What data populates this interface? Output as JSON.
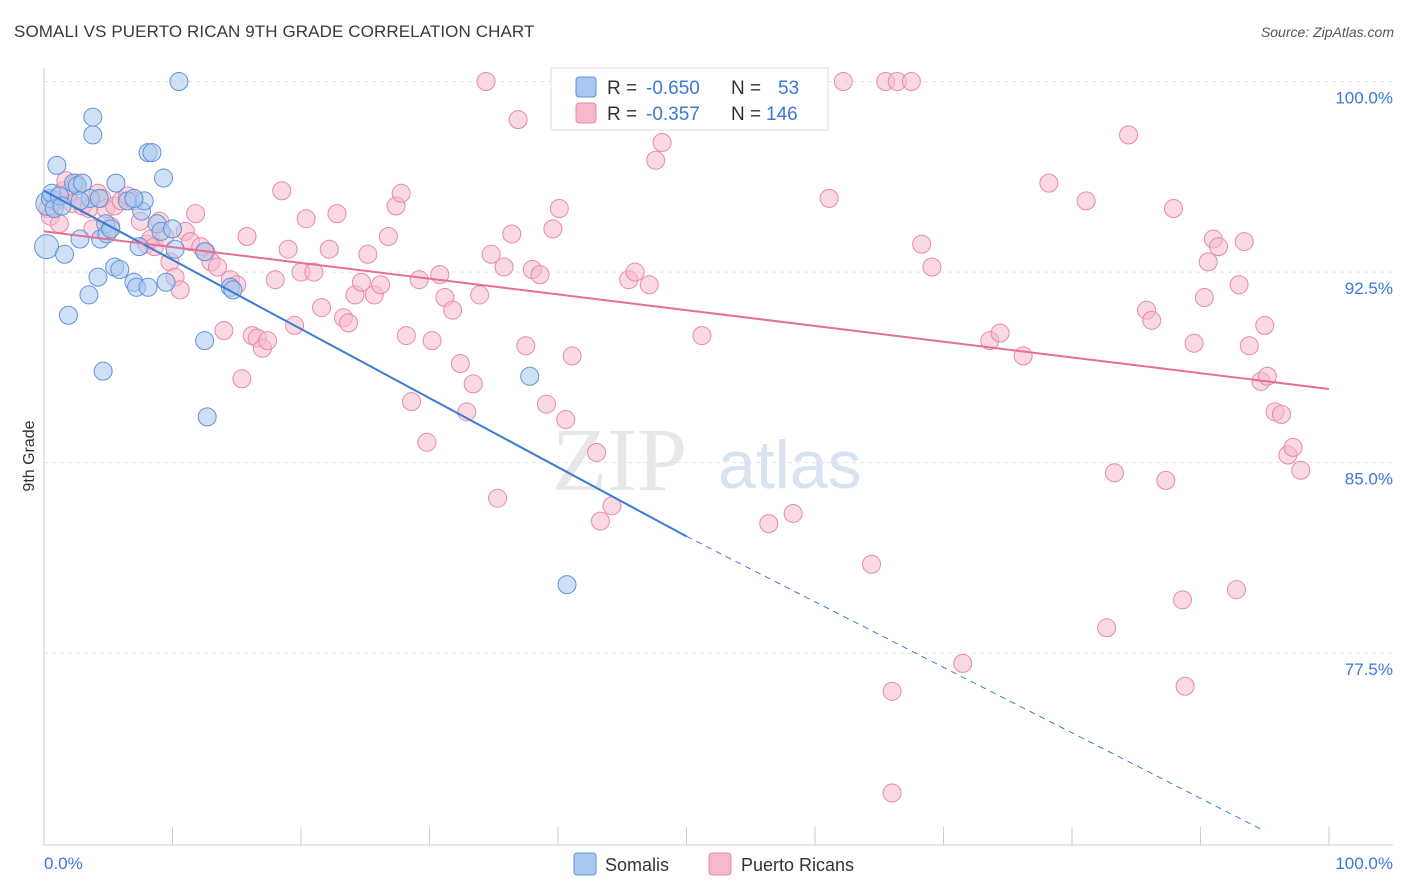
{
  "header": {
    "title": "SOMALI VS PUERTO RICAN 9TH GRADE CORRELATION CHART",
    "source": "Source: ZipAtlas.com"
  },
  "watermark": {
    "zip": "ZIP",
    "atlas": "atlas"
  },
  "colors": {
    "somali_fill": "#a9c8f0",
    "somali_stroke": "#5f93d6",
    "somali_line": "#3a7bd5",
    "pr_fill": "#f6b9cc",
    "pr_stroke": "#e889a8",
    "pr_line": "#e56f97",
    "grid": "#e3e3e3",
    "tick_label": "#3c78d8"
  },
  "legend": {
    "rows": [
      {
        "r_label": "R =",
        "r_value": "-0.650",
        "n_label": "N =",
        "n_value": "53"
      },
      {
        "r_label": "R =",
        "r_value": "-0.357",
        "n_label": "N =",
        "n_value": "146"
      }
    ]
  },
  "chart_data": {
    "type": "scatter",
    "title": "SOMALI VS PUERTO RICAN 9TH GRADE CORRELATION CHART",
    "xlabel": "",
    "ylabel": "9th Grade",
    "xlim": [
      0,
      100
    ],
    "ylim": [
      70.5,
      101.2
    ],
    "x_tick_labels": [
      "0.0%",
      "100.0%"
    ],
    "y_ticks": [
      77.5,
      85.0,
      92.5,
      100.0
    ],
    "y_tick_labels": [
      "77.5%",
      "85.0%",
      "92.5%",
      "100.0%"
    ],
    "grid": true,
    "legend_position": "top-center",
    "series": [
      {
        "name": "Somalis",
        "r": -0.65,
        "n": 53,
        "trend": {
          "x0": 0,
          "y0": 95.7,
          "x1": 50,
          "y1": 82.1,
          "dashed_to_x": 95,
          "dashed_to_y": 70.5
        },
        "points": [
          [
            0.2,
            93.5
          ],
          [
            0.3,
            95.2
          ],
          [
            0.5,
            95.4
          ],
          [
            0.6,
            95.6
          ],
          [
            0.8,
            95.0
          ],
          [
            1.0,
            96.7
          ],
          [
            1.2,
            95.5
          ],
          [
            1.4,
            95.1
          ],
          [
            1.6,
            93.2
          ],
          [
            1.9,
            90.8
          ],
          [
            2.3,
            96.0
          ],
          [
            2.6,
            95.9
          ],
          [
            2.8,
            93.8
          ],
          [
            3.0,
            96.0
          ],
          [
            3.5,
            91.6
          ],
          [
            3.6,
            95.4
          ],
          [
            3.8,
            97.9
          ],
          [
            3.8,
            98.6
          ],
          [
            4.2,
            92.3
          ],
          [
            4.3,
            95.4
          ],
          [
            4.4,
            93.8
          ],
          [
            4.6,
            88.6
          ],
          [
            4.8,
            94.4
          ],
          [
            4.9,
            94.0
          ],
          [
            5.2,
            94.2
          ],
          [
            5.5,
            92.7
          ],
          [
            5.6,
            96.0
          ],
          [
            5.9,
            92.6
          ],
          [
            6.5,
            95.3
          ],
          [
            7.0,
            92.1
          ],
          [
            7.2,
            91.9
          ],
          [
            7.4,
            93.5
          ],
          [
            7.6,
            94.9
          ],
          [
            7.8,
            95.3
          ],
          [
            8.1,
            91.9
          ],
          [
            8.1,
            97.2
          ],
          [
            8.4,
            97.2
          ],
          [
            8.8,
            94.4
          ],
          [
            9.1,
            94.1
          ],
          [
            9.3,
            96.2
          ],
          [
            9.5,
            92.1
          ],
          [
            10.0,
            94.2
          ],
          [
            10.2,
            93.4
          ],
          [
            12.5,
            93.3
          ],
          [
            12.5,
            89.8
          ],
          [
            12.7,
            86.8
          ],
          [
            10.5,
            100.0
          ],
          [
            14.5,
            91.9
          ],
          [
            14.7,
            91.8
          ],
          [
            37.8,
            88.4
          ],
          [
            40.7,
            80.2
          ],
          [
            7.0,
            95.4
          ],
          [
            2.8,
            95.3
          ]
        ]
      },
      {
        "name": "Puerto Ricans",
        "r": -0.357,
        "n": 146,
        "trend": {
          "x0": 0,
          "y0": 94.1,
          "x1": 100,
          "y1": 87.9
        },
        "points": [
          [
            0.3,
            95.0
          ],
          [
            0.5,
            94.7
          ],
          [
            0.8,
            95.3
          ],
          [
            1.0,
            95.3
          ],
          [
            1.2,
            94.4
          ],
          [
            1.5,
            95.7
          ],
          [
            1.7,
            96.1
          ],
          [
            1.9,
            95.6
          ],
          [
            2.2,
            95.2
          ],
          [
            2.5,
            96.0
          ],
          [
            3.0,
            95.1
          ],
          [
            3.5,
            95.0
          ],
          [
            3.8,
            94.2
          ],
          [
            4.2,
            95.6
          ],
          [
            4.5,
            95.4
          ],
          [
            4.8,
            95.0
          ],
          [
            5.2,
            94.3
          ],
          [
            5.5,
            95.1
          ],
          [
            6.0,
            95.3
          ],
          [
            6.5,
            95.5
          ],
          [
            7.0,
            95.3
          ],
          [
            7.5,
            94.5
          ],
          [
            8.0,
            93.6
          ],
          [
            8.3,
            93.8
          ],
          [
            8.6,
            93.5
          ],
          [
            9.0,
            94.5
          ],
          [
            9.4,
            93.9
          ],
          [
            9.8,
            92.9
          ],
          [
            10.2,
            92.3
          ],
          [
            10.6,
            91.8
          ],
          [
            11.0,
            94.1
          ],
          [
            11.4,
            93.7
          ],
          [
            11.8,
            94.8
          ],
          [
            12.2,
            93.5
          ],
          [
            12.6,
            93.3
          ],
          [
            13.0,
            92.9
          ],
          [
            13.5,
            92.7
          ],
          [
            14.0,
            90.2
          ],
          [
            14.5,
            92.2
          ],
          [
            15.0,
            92.0
          ],
          [
            15.4,
            88.3
          ],
          [
            15.8,
            93.9
          ],
          [
            16.2,
            90.0
          ],
          [
            16.6,
            89.9
          ],
          [
            17.0,
            89.5
          ],
          [
            17.4,
            89.8
          ],
          [
            18.0,
            92.2
          ],
          [
            18.5,
            95.7
          ],
          [
            19.0,
            93.4
          ],
          [
            19.5,
            90.4
          ],
          [
            20.0,
            92.5
          ],
          [
            20.4,
            94.6
          ],
          [
            21.0,
            92.5
          ],
          [
            21.6,
            91.1
          ],
          [
            22.2,
            93.4
          ],
          [
            22.8,
            94.8
          ],
          [
            23.3,
            90.7
          ],
          [
            23.7,
            90.5
          ],
          [
            24.2,
            91.6
          ],
          [
            24.7,
            92.1
          ],
          [
            25.2,
            93.2
          ],
          [
            25.7,
            91.6
          ],
          [
            26.2,
            92.0
          ],
          [
            26.8,
            93.9
          ],
          [
            27.4,
            95.1
          ],
          [
            27.8,
            95.6
          ],
          [
            28.2,
            90.0
          ],
          [
            28.6,
            87.4
          ],
          [
            29.2,
            92.2
          ],
          [
            29.8,
            85.8
          ],
          [
            30.2,
            89.8
          ],
          [
            30.8,
            92.4
          ],
          [
            31.2,
            91.5
          ],
          [
            31.8,
            91.0
          ],
          [
            32.4,
            88.9
          ],
          [
            32.9,
            87.0
          ],
          [
            33.4,
            88.1
          ],
          [
            33.9,
            91.6
          ],
          [
            34.4,
            100.0
          ],
          [
            34.8,
            93.2
          ],
          [
            35.3,
            83.6
          ],
          [
            35.8,
            92.7
          ],
          [
            36.4,
            94.0
          ],
          [
            36.9,
            98.5
          ],
          [
            37.5,
            89.6
          ],
          [
            38.0,
            92.6
          ],
          [
            38.6,
            92.4
          ],
          [
            39.1,
            87.3
          ],
          [
            39.6,
            94.2
          ],
          [
            40.1,
            95.0
          ],
          [
            40.6,
            86.7
          ],
          [
            41.1,
            89.2
          ],
          [
            43.0,
            85.4
          ],
          [
            43.3,
            82.7
          ],
          [
            44.2,
            83.3
          ],
          [
            45.5,
            92.2
          ],
          [
            46.0,
            92.5
          ],
          [
            47.1,
            92.0
          ],
          [
            47.6,
            96.9
          ],
          [
            48.1,
            97.6
          ],
          [
            49.5,
            100.0
          ],
          [
            50.6,
            100.0
          ],
          [
            51.2,
            90.0
          ],
          [
            55.0,
            100.0
          ],
          [
            56.4,
            82.6
          ],
          [
            58.3,
            83.0
          ],
          [
            59.3,
            100.0
          ],
          [
            59.7,
            100.0
          ],
          [
            61.1,
            95.4
          ],
          [
            62.2,
            100.0
          ],
          [
            64.4,
            81.0
          ],
          [
            65.5,
            100.0
          ],
          [
            66.0,
            76.0
          ],
          [
            66.4,
            100.0
          ],
          [
            67.5,
            100.0
          ],
          [
            68.3,
            93.6
          ],
          [
            69.1,
            92.7
          ],
          [
            71.5,
            77.1
          ],
          [
            73.6,
            89.8
          ],
          [
            74.4,
            90.1
          ],
          [
            76.2,
            89.2
          ],
          [
            78.2,
            96.0
          ],
          [
            81.1,
            95.3
          ],
          [
            82.7,
            78.5
          ],
          [
            83.3,
            84.6
          ],
          [
            84.4,
            97.9
          ],
          [
            85.8,
            91.0
          ],
          [
            86.2,
            90.6
          ],
          [
            87.3,
            84.3
          ],
          [
            87.9,
            95.0
          ],
          [
            88.6,
            79.6
          ],
          [
            88.8,
            76.2
          ],
          [
            89.5,
            89.7
          ],
          [
            90.3,
            91.5
          ],
          [
            90.6,
            92.9
          ],
          [
            91.0,
            93.8
          ],
          [
            91.4,
            93.5
          ],
          [
            92.8,
            80.0
          ],
          [
            93.0,
            92.0
          ],
          [
            93.4,
            93.7
          ],
          [
            93.8,
            89.6
          ],
          [
            94.7,
            88.2
          ],
          [
            95.0,
            90.4
          ],
          [
            95.2,
            88.4
          ],
          [
            95.8,
            87.0
          ],
          [
            96.3,
            86.9
          ],
          [
            96.8,
            85.3
          ],
          [
            97.2,
            85.6
          ],
          [
            97.8,
            84.7
          ],
          [
            66.0,
            72.0
          ]
        ]
      }
    ]
  },
  "bottom_legend": {
    "somali": "Somalis",
    "puerto_rican": "Puerto Ricans"
  }
}
